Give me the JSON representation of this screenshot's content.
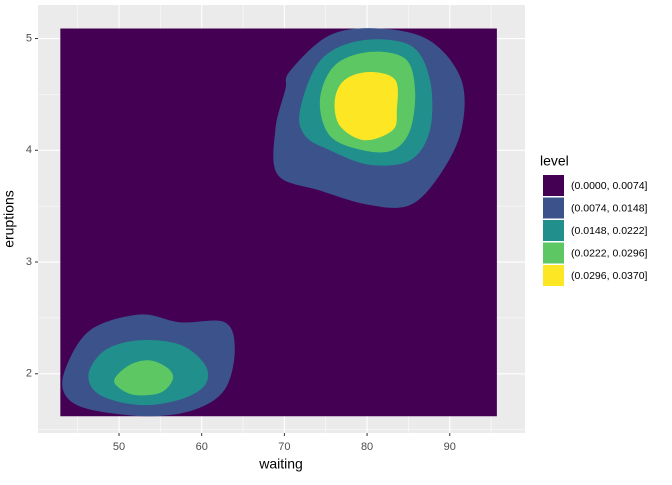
{
  "chart_data": {
    "type": "filled-contour",
    "x_label": "waiting",
    "y_label": "eruptions",
    "legend_title": "level",
    "xlim": [
      40.2,
      99.1
    ],
    "ylim": [
      1.47,
      5.3
    ],
    "xticks": [
      50,
      60,
      70,
      80,
      90
    ],
    "yticks": [
      2,
      3,
      4,
      5
    ],
    "x_minor_grid": [
      45,
      55,
      65,
      75,
      85,
      95
    ],
    "y_minor_grid": [
      1.5,
      2.5,
      3.5,
      4.5
    ],
    "grid": true,
    "legend": "right",
    "series": [
      {
        "name": "(0.0000, 0.0074]",
        "color": "#440154",
        "regions": [
          {
            "x": [
              42.9,
              95.7,
              95.7,
              42.9
            ],
            "y": [
              1.62,
              1.62,
              5.09,
              5.09
            ]
          }
        ]
      },
      {
        "name": "(0.0074, 0.0148]",
        "color": "#3B528B",
        "regions": [
          {
            "x": [
              70.7,
              75.5,
              81.5,
              87.6,
              91.4,
              91.4,
              88.8,
              85.2,
              80.3,
              74.3,
              69.2,
              68.9,
              70.1
            ],
            "y": [
              4.71,
              5.03,
              5.09,
              4.98,
              4.63,
              4.18,
              3.78,
              3.51,
              3.51,
              3.64,
              3.78,
              4.18,
              4.54
            ]
          },
          {
            "x": [
              43.5,
              46.5,
              52.5,
              57.4,
              62.8,
              64.0,
              62.8,
              59.2,
              53.7,
              46.5,
              43.5
            ],
            "y": [
              2.04,
              2.39,
              2.53,
              2.46,
              2.46,
              2.21,
              1.86,
              1.68,
              1.62,
              1.68,
              1.81
            ]
          }
        ]
      },
      {
        "name": "(0.0148, 0.0222]",
        "color": "#21908C",
        "regions": [
          {
            "x": [
              71.9,
              74.3,
              79.1,
              85.2,
              87.6,
              87.6,
              85.2,
              80.3,
              75.5,
              72.5
            ],
            "y": [
              4.36,
              4.8,
              4.98,
              4.94,
              4.63,
              4.18,
              3.91,
              3.87,
              4.0,
              4.13
            ]
          },
          {
            "x": [
              46.3,
              48.3,
              52.5,
              57.4,
              60.4,
              60.4,
              57.4,
              52.5,
              47.7
            ],
            "y": [
              1.99,
              2.21,
              2.3,
              2.26,
              2.08,
              1.9,
              1.77,
              1.72,
              1.81
            ]
          }
        ]
      },
      {
        "name": "(0.0222, 0.0296]",
        "color": "#5DC863",
        "regions": [
          {
            "x": [
              74.3,
              76.1,
              80.3,
              84.6,
              85.8,
              85.2,
              83.1,
              79.5,
              75.5
            ],
            "y": [
              4.45,
              4.76,
              4.88,
              4.82,
              4.54,
              4.18,
              4.0,
              4.0,
              4.13
            ]
          },
          {
            "x": [
              49.5,
              51.3,
              53.7,
              55.9,
              56.5,
              55.0,
              51.9,
              49.9
            ],
            "y": [
              1.96,
              2.08,
              2.12,
              2.05,
              1.95,
              1.83,
              1.81,
              1.88
            ]
          }
        ]
      },
      {
        "name": "(0.0296, 0.0370]",
        "color": "#FDE725",
        "regions": [
          {
            "x": [
              76.1,
              77.3,
              80.3,
              83.4,
              83.6,
              83.1,
              79.7,
              76.7
            ],
            "y": [
              4.45,
              4.63,
              4.7,
              4.63,
              4.36,
              4.18,
              4.09,
              4.22
            ]
          }
        ]
      }
    ]
  }
}
